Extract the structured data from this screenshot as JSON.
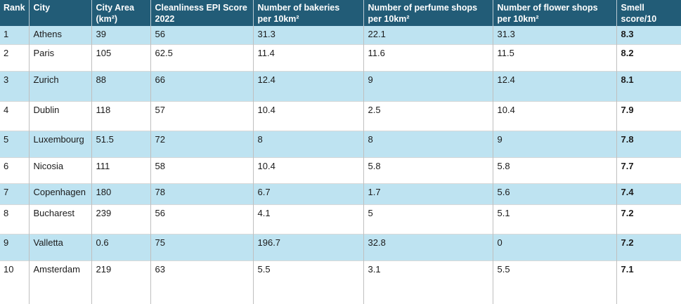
{
  "table": {
    "columns": [
      {
        "id": "rank",
        "line1": "Rank",
        "line2": ""
      },
      {
        "id": "city",
        "line1": "City",
        "line2": ""
      },
      {
        "id": "city_area",
        "line1": "City Area",
        "line2": "(km²)"
      },
      {
        "id": "epi",
        "line1": "Cleanliness EPI Score",
        "line2": "2022"
      },
      {
        "id": "bakeries",
        "line1": "Number of bakeries",
        "line2": "per 10km²"
      },
      {
        "id": "perfume",
        "line1": "Number of perfume shops",
        "line2": "per 10km²"
      },
      {
        "id": "flower",
        "line1": "Number of flower shops",
        "line2": "per 10km²"
      },
      {
        "id": "smell",
        "line1": "Smell",
        "line2": "score/10"
      }
    ],
    "rows": [
      {
        "rank": "1",
        "city": "Athens",
        "city_area": "39",
        "epi": "56",
        "bakeries": "31.3",
        "perfume": "22.1",
        "flower": "31.3",
        "smell": "8.3"
      },
      {
        "rank": "2",
        "city": "Paris",
        "city_area": "105",
        "epi": "62.5",
        "bakeries": "11.4",
        "perfume": "11.6",
        "flower": "11.5",
        "smell": "8.2"
      },
      {
        "rank": "3",
        "city": "Zurich",
        "city_area": "88",
        "epi": "66",
        "bakeries": "12.4",
        "perfume": "9",
        "flower": "12.4",
        "smell": "8.1"
      },
      {
        "rank": "4",
        "city": "Dublin",
        "city_area": "118",
        "epi": "57",
        "bakeries": "10.4",
        "perfume": "2.5",
        "flower": "10.4",
        "smell": "7.9"
      },
      {
        "rank": "5",
        "city": "Luxembourg",
        "city_area": "51.5",
        "epi": "72",
        "bakeries": "8",
        "perfume": "8",
        "flower": "9",
        "smell": "7.8"
      },
      {
        "rank": "6",
        "city": "Nicosia",
        "city_area": "111",
        "epi": "58",
        "bakeries": "10.4",
        "perfume": "5.8",
        "flower": "5.8",
        "smell": "7.7"
      },
      {
        "rank": "7",
        "city": "Copenhagen",
        "city_area": "180",
        "epi": "78",
        "bakeries": "6.7",
        "perfume": "1.7",
        "flower": "5.6",
        "smell": "7.4"
      },
      {
        "rank": "8",
        "city": "Bucharest",
        "city_area": "239",
        "epi": "56",
        "bakeries": "4.1",
        "perfume": "5",
        "flower": "5.1",
        "smell": "7.2"
      },
      {
        "rank": "9",
        "city": "Valletta",
        "city_area": "0.6",
        "epi": "75",
        "bakeries": "196.7",
        "perfume": "32.8",
        "flower": "0",
        "smell": "7.2"
      },
      {
        "rank": "10",
        "city": "Amsterdam",
        "city_area": "219",
        "epi": "63",
        "bakeries": "5.5",
        "perfume": "3.1",
        "flower": "5.5",
        "smell": "7.1"
      }
    ]
  },
  "colors": {
    "header_bg": "#225c77",
    "alt_row_bg": "#bee3f1",
    "row_bg": "#ffffff",
    "vertical_border": "#bfbfbf",
    "horizontal_border": "#d9d9d9",
    "header_text": "#ffffff",
    "body_text": "#1b1b1b"
  }
}
